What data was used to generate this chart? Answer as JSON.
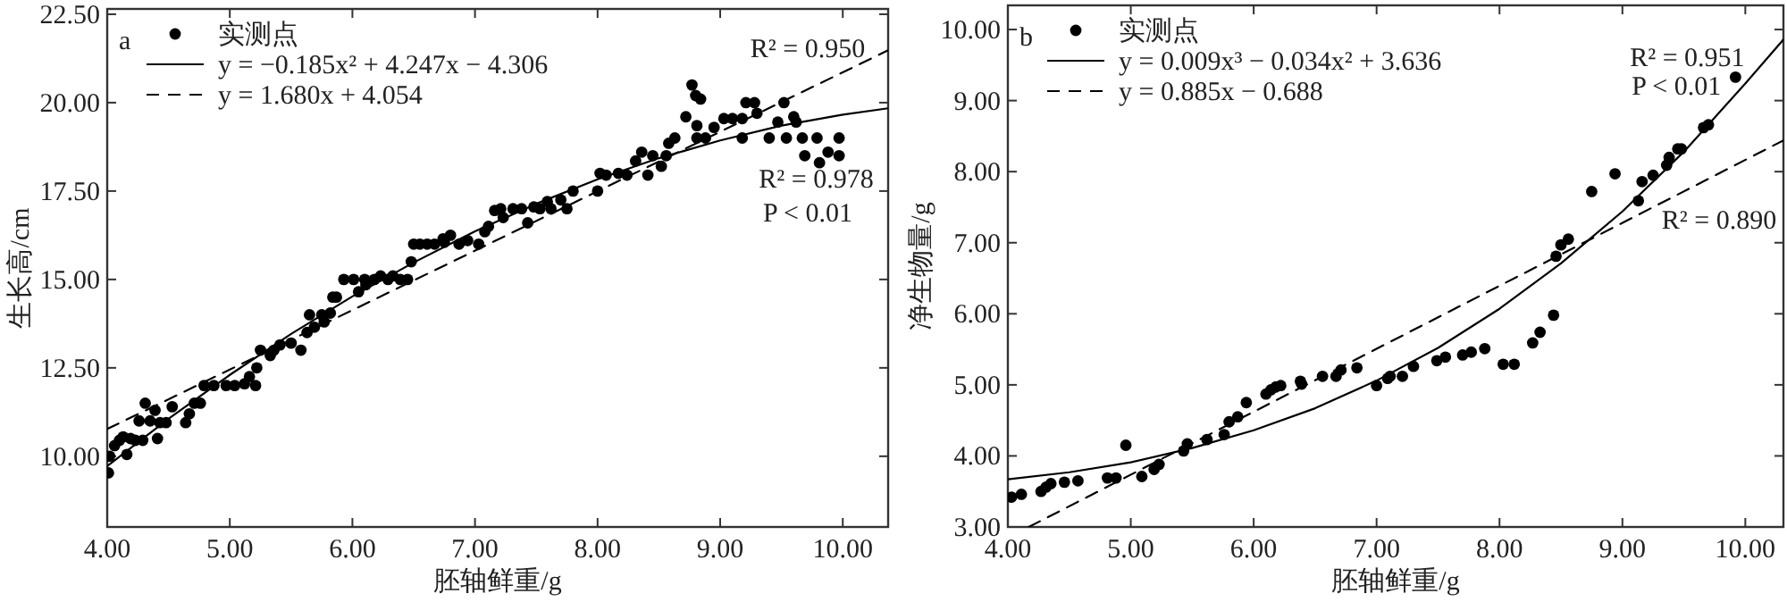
{
  "chart_data": [
    {
      "type": "scatter",
      "xlabel": "胚轴鲜重/g",
      "ylabel": "生长高/cm",
      "legend": "top left",
      "grid": false,
      "xlim": [
        4,
        10.37
      ],
      "ylim": [
        8,
        22.65
      ],
      "xticks": [
        {
          "value": 4,
          "label": "4.00"
        },
        {
          "value": 5,
          "label": "5.00"
        },
        {
          "value": 6,
          "label": "6.00"
        },
        {
          "value": 7,
          "label": "7.00"
        },
        {
          "value": 8,
          "label": "8.00"
        },
        {
          "value": 9,
          "label": "9.00"
        },
        {
          "value": 10,
          "label": "10.00"
        }
      ],
      "yticks": [
        {
          "value": 10,
          "label": "10.00"
        },
        {
          "value": 12.5,
          "label": "12.50"
        },
        {
          "value": 15,
          "label": "15.00"
        },
        {
          "value": 17.5,
          "label": "17.50"
        },
        {
          "value": 20,
          "label": "20.00"
        },
        {
          "value": 22.5,
          "label": "22.50"
        }
      ],
      "annotations": [
        "a",
        "R² = 0.950",
        "R² = 0.978",
        "P < 0.01"
      ],
      "series": [
        {
          "name": "实测点",
          "color": "#000000",
          "marker": "circle",
          "x": [
            4.01,
            4.02,
            4.06,
            4.1,
            4.13,
            4.16,
            4.19,
            4.23,
            4.26,
            4.29,
            4.31,
            4.35,
            4.39,
            4.41,
            4.43,
            4.48,
            4.53,
            4.64,
            4.67,
            4.71,
            4.76,
            4.79,
            4.87,
            4.97,
            5.04,
            5.12,
            5.16,
            5.21,
            5.22,
            5.25,
            5.33,
            5.36,
            5.41,
            5.5,
            5.58,
            5.63,
            5.65,
            5.69,
            5.75,
            5.77,
            5.82,
            5.84,
            5.87,
            5.93,
            6.01,
            6.05,
            6.1,
            6.11,
            6.18,
            6.23,
            6.29,
            6.33,
            6.39,
            6.45,
            6.48,
            6.5,
            6.55,
            6.61,
            6.67,
            6.74,
            6.75,
            6.8,
            6.87,
            6.94,
            7.03,
            7.08,
            7.11,
            7.16,
            7.21,
            7.23,
            7.31,
            7.38,
            7.43,
            7.48,
            7.53,
            7.59,
            7.62,
            7.7,
            7.75,
            7.8,
            8.0,
            8.02,
            8.07,
            8.17,
            8.24,
            8.31,
            8.36,
            8.41,
            8.45,
            8.52,
            8.56,
            8.58,
            8.63,
            8.72,
            8.77,
            8.8,
            8.84,
            8.81,
            8.81,
            8.88,
            8.95,
            9.03,
            9.1,
            9.18,
            9.18,
            9.21,
            9.28,
            9.3,
            9.4,
            9.47,
            9.52,
            9.54,
            9.6,
            9.62,
            9.67,
            9.69,
            9.79,
            9.81,
            9.88,
            9.97,
            9.97
          ],
          "values": [
            9.53,
            10.0,
            10.3,
            10.45,
            10.55,
            10.05,
            10.5,
            10.45,
            11.0,
            10.45,
            11.5,
            11.0,
            11.3,
            10.5,
            10.95,
            10.95,
            11.4,
            10.95,
            11.2,
            11.5,
            11.5,
            12.0,
            12.0,
            12.0,
            12.0,
            12.05,
            12.25,
            12.0,
            12.5,
            13.0,
            12.85,
            13.0,
            13.15,
            13.2,
            13.0,
            13.5,
            14.0,
            13.65,
            14.0,
            13.8,
            14.05,
            14.5,
            14.5,
            15.0,
            15.0,
            14.65,
            15.0,
            14.85,
            15.0,
            15.1,
            15.0,
            15.1,
            15.0,
            15.0,
            15.5,
            16.0,
            16.0,
            16.0,
            16.0,
            16.15,
            16.05,
            16.25,
            16.0,
            16.1,
            16.0,
            16.35,
            16.5,
            16.95,
            17.0,
            16.75,
            17.0,
            17.0,
            16.6,
            17.05,
            17.0,
            17.2,
            17.0,
            17.25,
            17.0,
            17.5,
            17.5,
            18.0,
            17.95,
            18.0,
            17.95,
            18.35,
            18.6,
            17.95,
            18.5,
            18.2,
            18.5,
            18.85,
            19.0,
            19.6,
            20.5,
            20.2,
            20.1,
            19.35,
            19.0,
            19.0,
            19.3,
            19.55,
            19.55,
            19.55,
            19.0,
            20.0,
            20.0,
            19.7,
            19.0,
            19.45,
            20.0,
            19.0,
            19.6,
            19.45,
            19.0,
            18.5,
            19.0,
            18.3,
            18.6,
            19.0,
            18.5
          ]
        },
        {
          "type": "line",
          "name": "y = −0.185x² + 4.247x − 4.306",
          "color": "#000000",
          "line_style": "solid",
          "x": [
            4,
            4.5,
            5,
            5.5,
            6,
            6.5,
            7,
            7.5,
            8,
            8.5,
            9,
            9.5,
            10,
            10.37
          ],
          "values": [
            9.72,
            11.06,
            12.3,
            13.46,
            14.52,
            15.48,
            16.36,
            17.14,
            17.83,
            18.43,
            18.93,
            19.35,
            19.66,
            19.84
          ]
        },
        {
          "type": "line",
          "name": "y = 1.680x + 4.054",
          "color": "#000000",
          "line_style": "dashed",
          "x": [
            4,
            10.37
          ],
          "values": [
            10.77,
            21.48
          ]
        }
      ]
    },
    {
      "type": "scatter",
      "xlabel": "胚轴鲜重/g",
      "ylabel": "净生物量/g",
      "legend": "top left",
      "grid": false,
      "xlim": [
        4,
        10.31
      ],
      "ylim": [
        3,
        10.34
      ],
      "xticks": [
        {
          "value": 4,
          "label": "4.00"
        },
        {
          "value": 5,
          "label": "5.00"
        },
        {
          "value": 6,
          "label": "6.00"
        },
        {
          "value": 7,
          "label": "7.00"
        },
        {
          "value": 8,
          "label": "8.00"
        },
        {
          "value": 9,
          "label": "9.00"
        },
        {
          "value": 10,
          "label": "10.00"
        }
      ],
      "yticks": [
        {
          "value": 3,
          "label": "3.00"
        },
        {
          "value": 4,
          "label": "4.00"
        },
        {
          "value": 5,
          "label": "5.00"
        },
        {
          "value": 6,
          "label": "6.00"
        },
        {
          "value": 7,
          "label": "7.00"
        },
        {
          "value": 8,
          "label": "8.00"
        },
        {
          "value": 9,
          "label": "9.00"
        },
        {
          "value": 10,
          "label": "10.00"
        }
      ],
      "annotations": [
        "b",
        "R² = 0.951",
        "P < 0.01",
        "R² = 0.890"
      ],
      "series": [
        {
          "name": "实测点",
          "color": "#000000",
          "marker": "circle",
          "x": [
            4.03,
            4.11,
            4.27,
            4.31,
            4.35,
            4.46,
            4.57,
            4.81,
            4.88,
            4.96,
            5.09,
            5.19,
            5.23,
            5.43,
            5.46,
            5.62,
            5.76,
            5.8,
            5.87,
            5.94,
            6.1,
            6.14,
            6.18,
            6.22,
            6.38,
            6.39,
            6.56,
            6.67,
            6.71,
            6.84,
            7.0,
            7.09,
            7.11,
            7.21,
            7.3,
            7.49,
            7.56,
            7.7,
            7.77,
            7.88,
            8.03,
            8.12,
            8.27,
            8.33,
            8.44,
            8.46,
            8.5,
            8.56,
            8.75,
            8.94,
            9.13,
            9.16,
            9.25,
            9.36,
            9.38,
            9.45,
            9.48,
            9.66,
            9.7,
            9.92
          ],
          "values": [
            3.42,
            3.46,
            3.5,
            3.56,
            3.61,
            3.63,
            3.65,
            3.69,
            3.69,
            4.15,
            3.71,
            3.81,
            3.88,
            4.07,
            4.17,
            4.23,
            4.3,
            4.48,
            4.55,
            4.75,
            4.87,
            4.93,
            4.97,
            4.99,
            5.05,
            5.01,
            5.12,
            5.12,
            5.21,
            5.24,
            4.99,
            5.09,
            5.12,
            5.12,
            5.26,
            5.34,
            5.39,
            5.42,
            5.46,
            5.51,
            5.29,
            5.29,
            5.59,
            5.74,
            5.98,
            6.81,
            6.97,
            7.05,
            7.72,
            7.97,
            7.59,
            7.86,
            7.95,
            8.09,
            8.2,
            8.32,
            8.32,
            8.62,
            8.66,
            9.33
          ]
        },
        {
          "type": "line",
          "name": "y = 0.009x³ − 0.034x² + 3.636",
          "color": "#000000",
          "line_style": "solid",
          "x": [
            4,
            4.5,
            5,
            5.5,
            6,
            6.5,
            7,
            7.5,
            8,
            8.5,
            9,
            9.5,
            10,
            10.31
          ],
          "values": [
            3.67,
            3.77,
            3.91,
            4.11,
            4.36,
            4.67,
            5.06,
            5.52,
            6.07,
            6.71,
            7.44,
            8.28,
            9.24,
            9.86
          ]
        },
        {
          "type": "line",
          "name": "y = 0.885x − 0.688",
          "color": "#000000",
          "line_style": "dashed",
          "x": [
            4.17,
            10.31
          ],
          "values": [
            3.0,
            8.44
          ]
        }
      ]
    }
  ]
}
